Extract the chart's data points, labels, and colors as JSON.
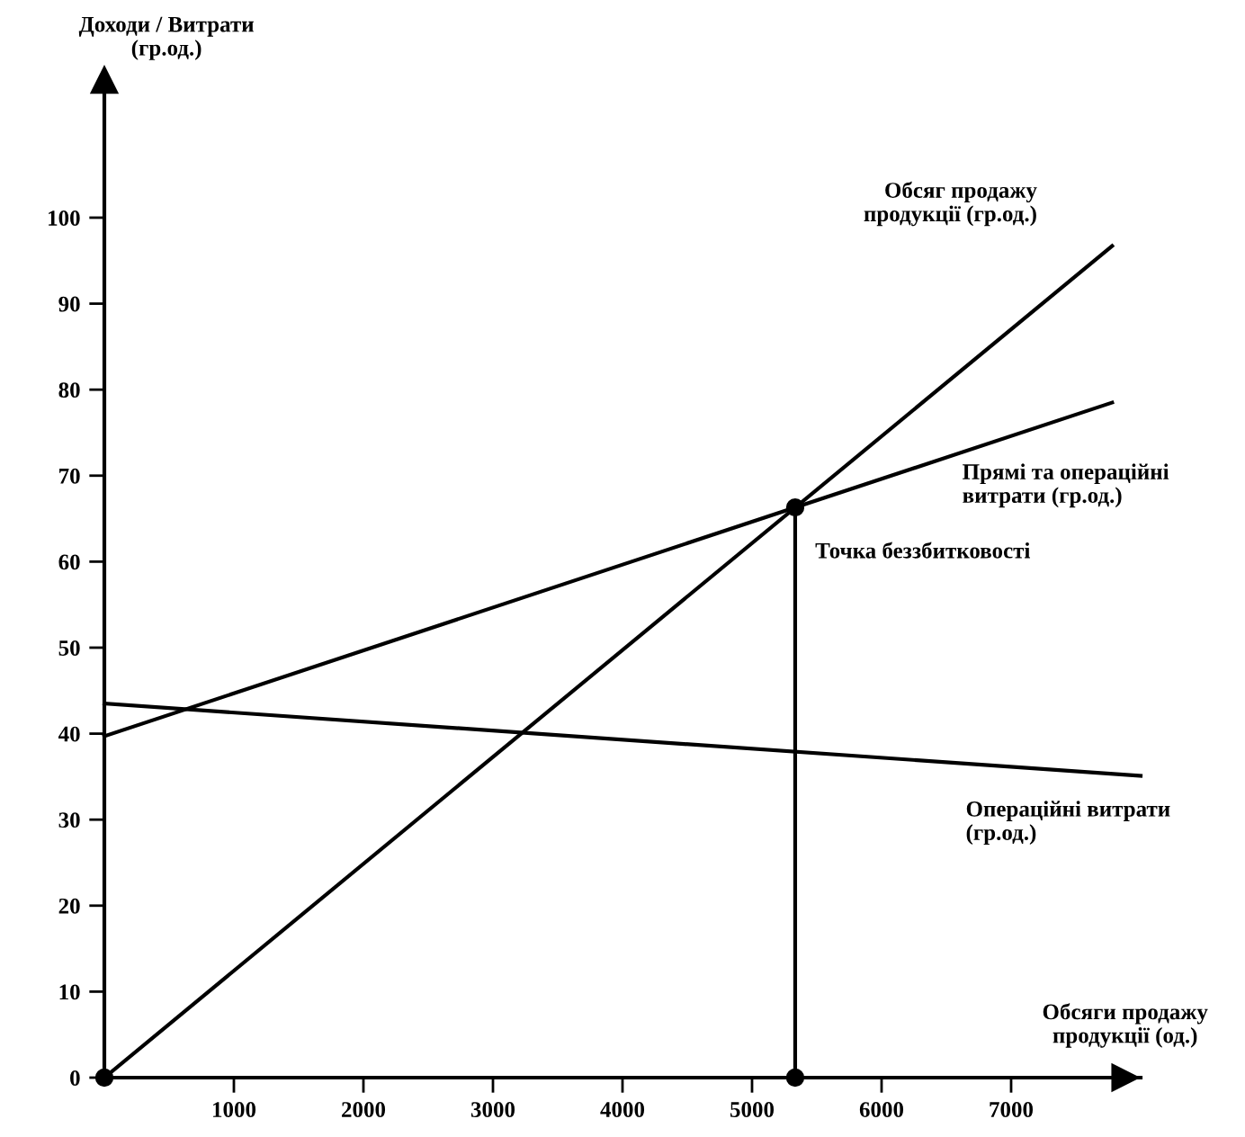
{
  "chart_data": {
    "type": "line",
    "xlabel": "Обсяги продажу\nпродукції (од.)",
    "ylabel": "Доходи / Витрати\n(гр.од.)",
    "xlim": [
      0,
      8000
    ],
    "ylim": [
      0,
      116
    ],
    "xticks": [
      1000,
      2000,
      3000,
      4000,
      5000,
      6000,
      7000
    ],
    "yticks": [
      0,
      10,
      20,
      30,
      40,
      50,
      60,
      70,
      80,
      90,
      100
    ],
    "series": [
      {
        "name": "Обсяг продажу\nпродукції (гр.од.)",
        "color": "#000000",
        "x": [
          0,
          7780
        ],
        "values": [
          0,
          96.7
        ]
      },
      {
        "name": "Прямі та операційні\nвитрати (гр.од.)",
        "color": "#000000",
        "x": [
          0,
          7780
        ],
        "values": [
          39.7,
          78.5
        ]
      },
      {
        "name": "Операційні витрати\n(гр.од.)",
        "color": "#000000",
        "x": [
          0,
          8000
        ],
        "values": [
          43.5,
          35.1
        ]
      },
      {
        "type": "line",
        "color": "#000000",
        "x": [
          5333,
          5333
        ],
        "values": [
          0,
          66.3
        ]
      },
      {
        "type": "scatter",
        "color": "#000000",
        "x": [
          0,
          5333,
          5333
        ],
        "values": [
          0,
          66.3,
          0
        ]
      }
    ],
    "annotations": [
      {
        "text": "Точка беззбитковості",
        "x": 5333,
        "y": 66.3
      }
    ],
    "grid": false,
    "legend": false
  }
}
